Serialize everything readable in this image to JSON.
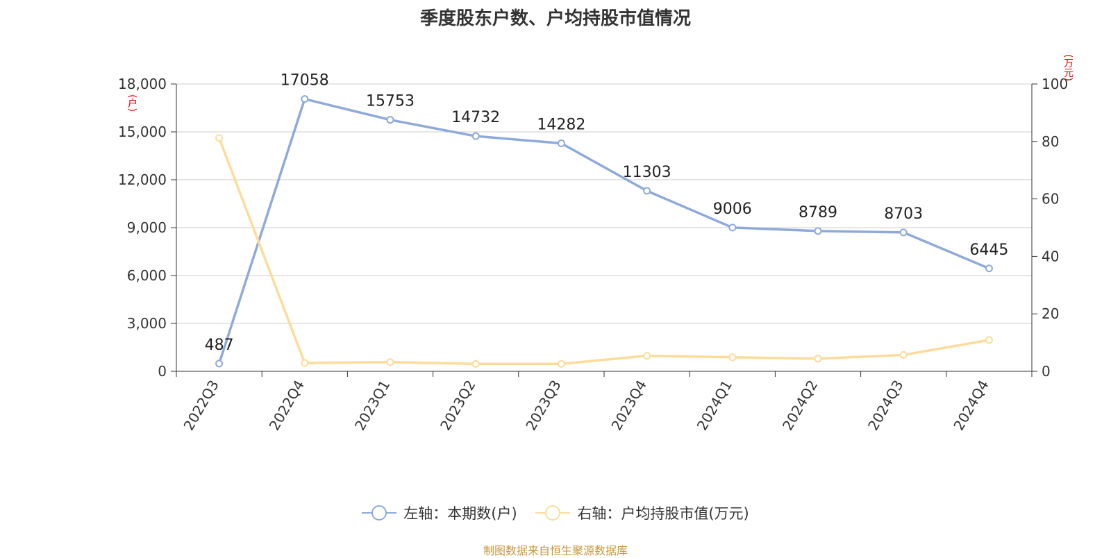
{
  "chart_data": {
    "type": "line",
    "title": "季度股东户数、户均持股市值情况",
    "categories": [
      "2022Q3",
      "2022Q4",
      "2023Q1",
      "2023Q2",
      "2023Q3",
      "2023Q4",
      "2024Q1",
      "2024Q2",
      "2024Q3",
      "2024Q4"
    ],
    "y_left": {
      "unit": "(户)",
      "ylim": [
        0,
        18000
      ],
      "ticks": [
        "0",
        "3,000",
        "6,000",
        "9,000",
        "12,000",
        "15,000",
        "18,000"
      ]
    },
    "y_right": {
      "unit": "(万元)",
      "ylim": [
        0,
        100
      ],
      "ticks": [
        "0",
        "20",
        "40",
        "60",
        "80",
        "100"
      ]
    },
    "series": [
      {
        "name": "左轴：本期数(户)",
        "axis": "left",
        "color": "#8eaadb",
        "values": [
          487,
          17058,
          15753,
          14732,
          14282,
          11303,
          9006,
          8789,
          8703,
          6445
        ],
        "labels": [
          "487",
          "17058",
          "15753",
          "14732",
          "14282",
          "11303",
          "9006",
          "8789",
          "8703",
          "6445"
        ]
      },
      {
        "name": "右轴：户均持股市值(万元)",
        "axis": "right",
        "color": "#fddc9a",
        "values": [
          81.2,
          2.9,
          3.2,
          2.6,
          2.6,
          5.4,
          4.9,
          4.4,
          5.7,
          10.9
        ]
      }
    ],
    "grid": true,
    "legend": "bottom"
  },
  "footer": {
    "source": "制图数据来自恒生聚源数据库"
  }
}
